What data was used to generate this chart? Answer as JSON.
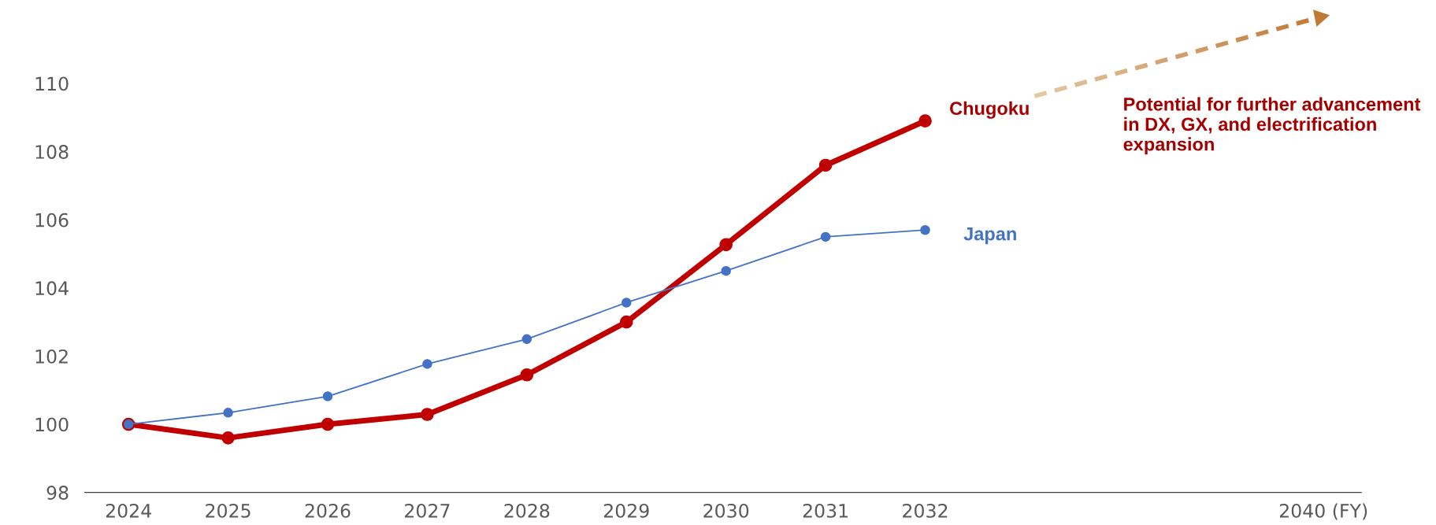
{
  "chart_data": {
    "type": "line",
    "categories": [
      "2024",
      "2025",
      "2026",
      "2027",
      "2028",
      "2029",
      "2030",
      "2031",
      "2032",
      null,
      null,
      null,
      "2040 (FY)"
    ],
    "series": [
      {
        "name": "Japan",
        "color": "#4472c4",
        "values": [
          100,
          100.34,
          100.82,
          101.77,
          102.5,
          103.57,
          104.5,
          105.5,
          105.7,
          null,
          null,
          null,
          null
        ]
      },
      {
        "name": "Chugoku",
        "color": "#c00000",
        "values": [
          100,
          99.6,
          100.0,
          100.29,
          101.45,
          103.0,
          105.27,
          107.6,
          108.9,
          null,
          null,
          null,
          null
        ]
      }
    ],
    "ylim": [
      98,
      110
    ],
    "yticks": [
      98,
      100,
      102,
      104,
      106,
      108,
      110
    ],
    "grid": false,
    "legend": false,
    "marker": "circle",
    "line_style": "solid",
    "annotations": [
      "Potential for further advancement in DX, GX, and electrification expansion"
    ]
  }
}
